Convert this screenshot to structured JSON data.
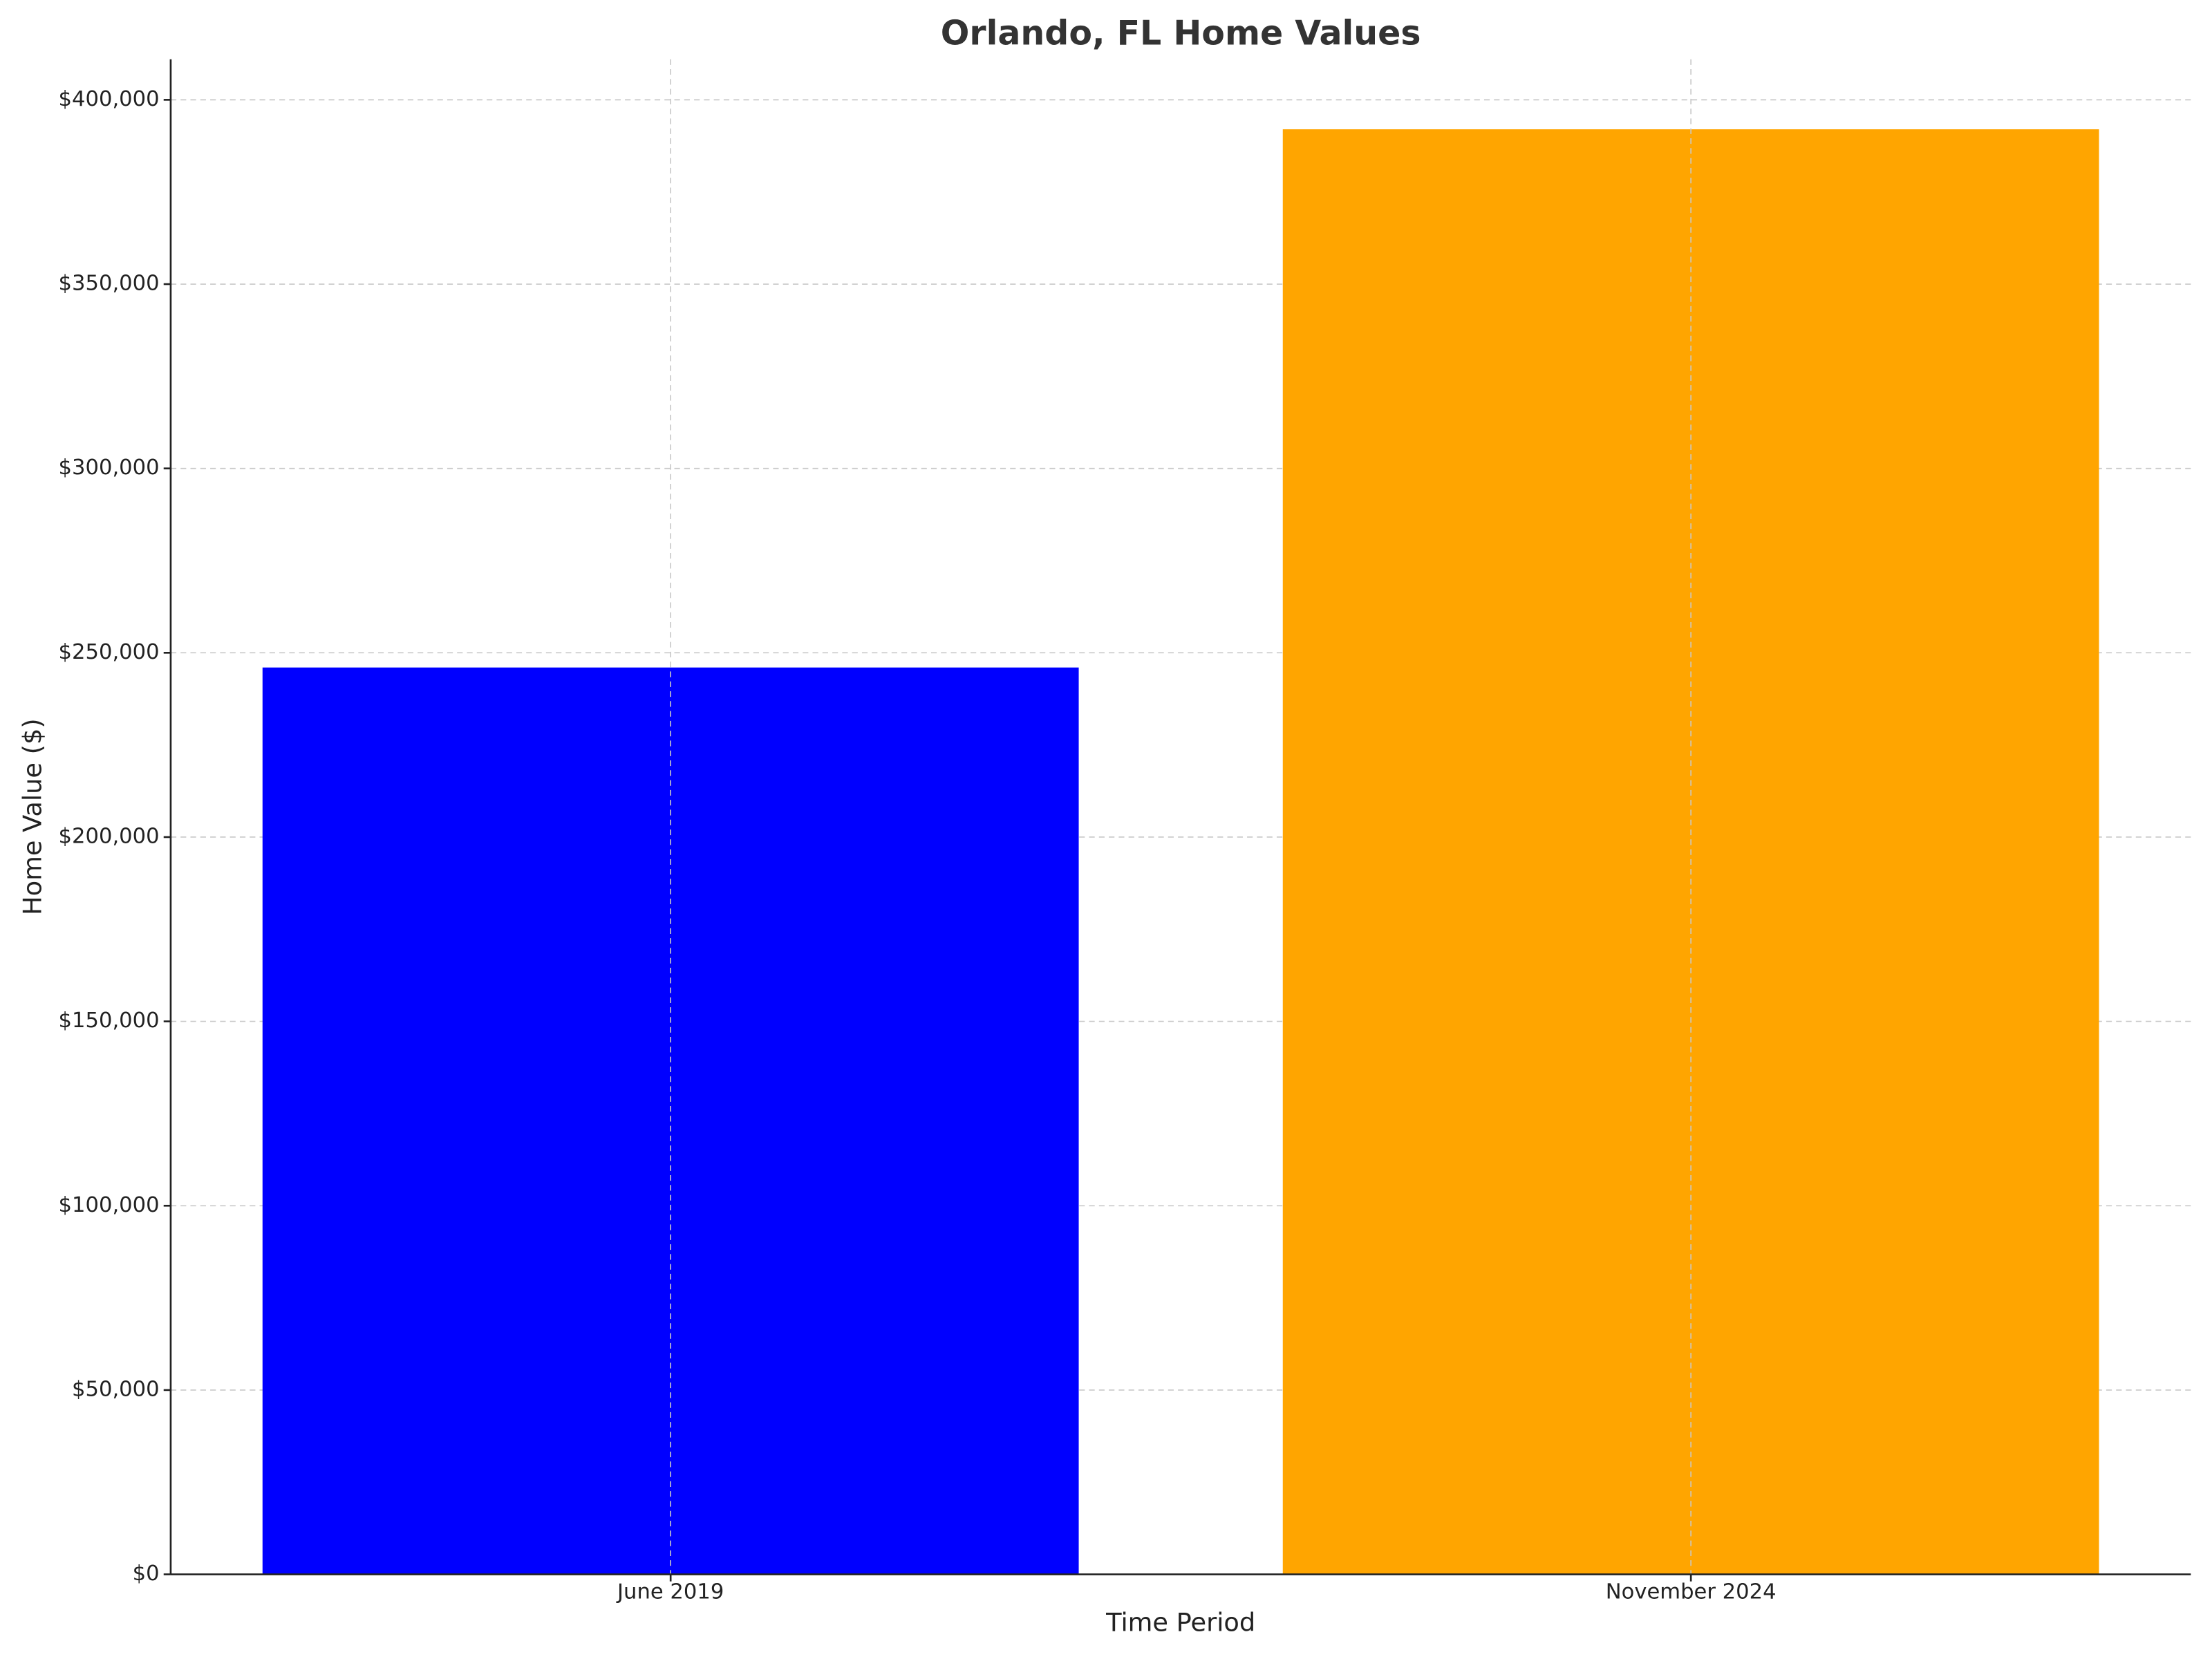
{
  "chart_data": {
    "type": "bar",
    "title": "Orlando, FL Home Values",
    "x_label": "Time Period",
    "y_label": "Home Value ($)",
    "categories": [
      "June 2019",
      "November 2024"
    ],
    "values": [
      246000,
      392000
    ],
    "colors": [
      "#0000ff",
      "#ffa500"
    ],
    "ylim": [
      0,
      411000
    ],
    "yticks": [
      {
        "value": 0,
        "label": "$0"
      },
      {
        "value": 50000,
        "label": "$50,000"
      },
      {
        "value": 100000,
        "label": "$100,000"
      },
      {
        "value": 150000,
        "label": "$150,000"
      },
      {
        "value": 200000,
        "label": "$200,000"
      },
      {
        "value": 250000,
        "label": "$250,000"
      },
      {
        "value": 300000,
        "label": "$300,000"
      },
      {
        "value": 350000,
        "label": "$350,000"
      },
      {
        "value": 400000,
        "label": "$400,000"
      }
    ],
    "grid": true
  }
}
